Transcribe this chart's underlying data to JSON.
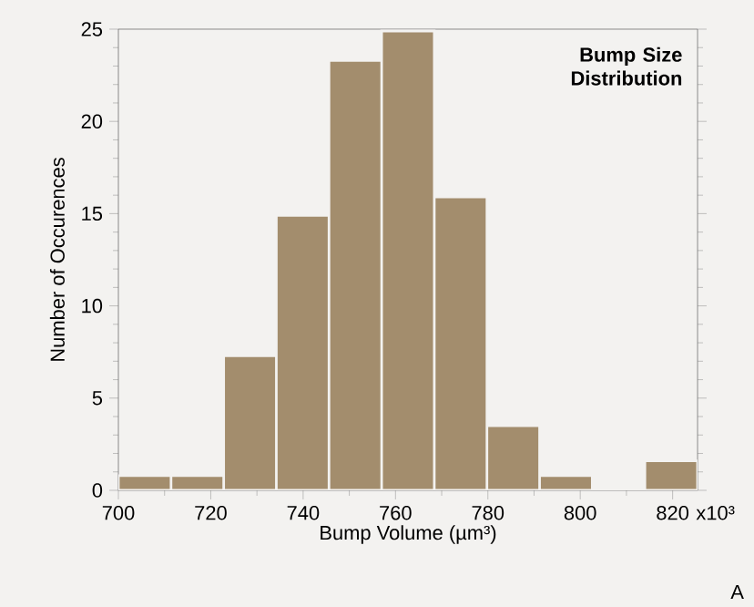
{
  "chart_data": {
    "type": "histogram",
    "title": "Bump Size Distribution",
    "xlabel": "Bump Volume (µm³)",
    "ylabel": "Number of Occurences",
    "bins": [
      700,
      711.4,
      722.8,
      734.2,
      745.6,
      757,
      768.4,
      779.8,
      791.2,
      802.6,
      814,
      825.4
    ],
    "values": [
      0.8,
      0.8,
      7.3,
      14.9,
      23.3,
      24.9,
      15.9,
      3.5,
      0.8,
      0,
      1.6
    ],
    "color": "#a38d6d",
    "xlim": [
      700,
      825.4
    ],
    "ylim": [
      0,
      25
    ],
    "xticks": [
      700,
      720,
      740,
      760,
      780,
      800,
      820
    ],
    "yticks": [
      0,
      5,
      10,
      15,
      20,
      25
    ],
    "annotations": [
      "x10³",
      "A"
    ],
    "grid": false
  }
}
